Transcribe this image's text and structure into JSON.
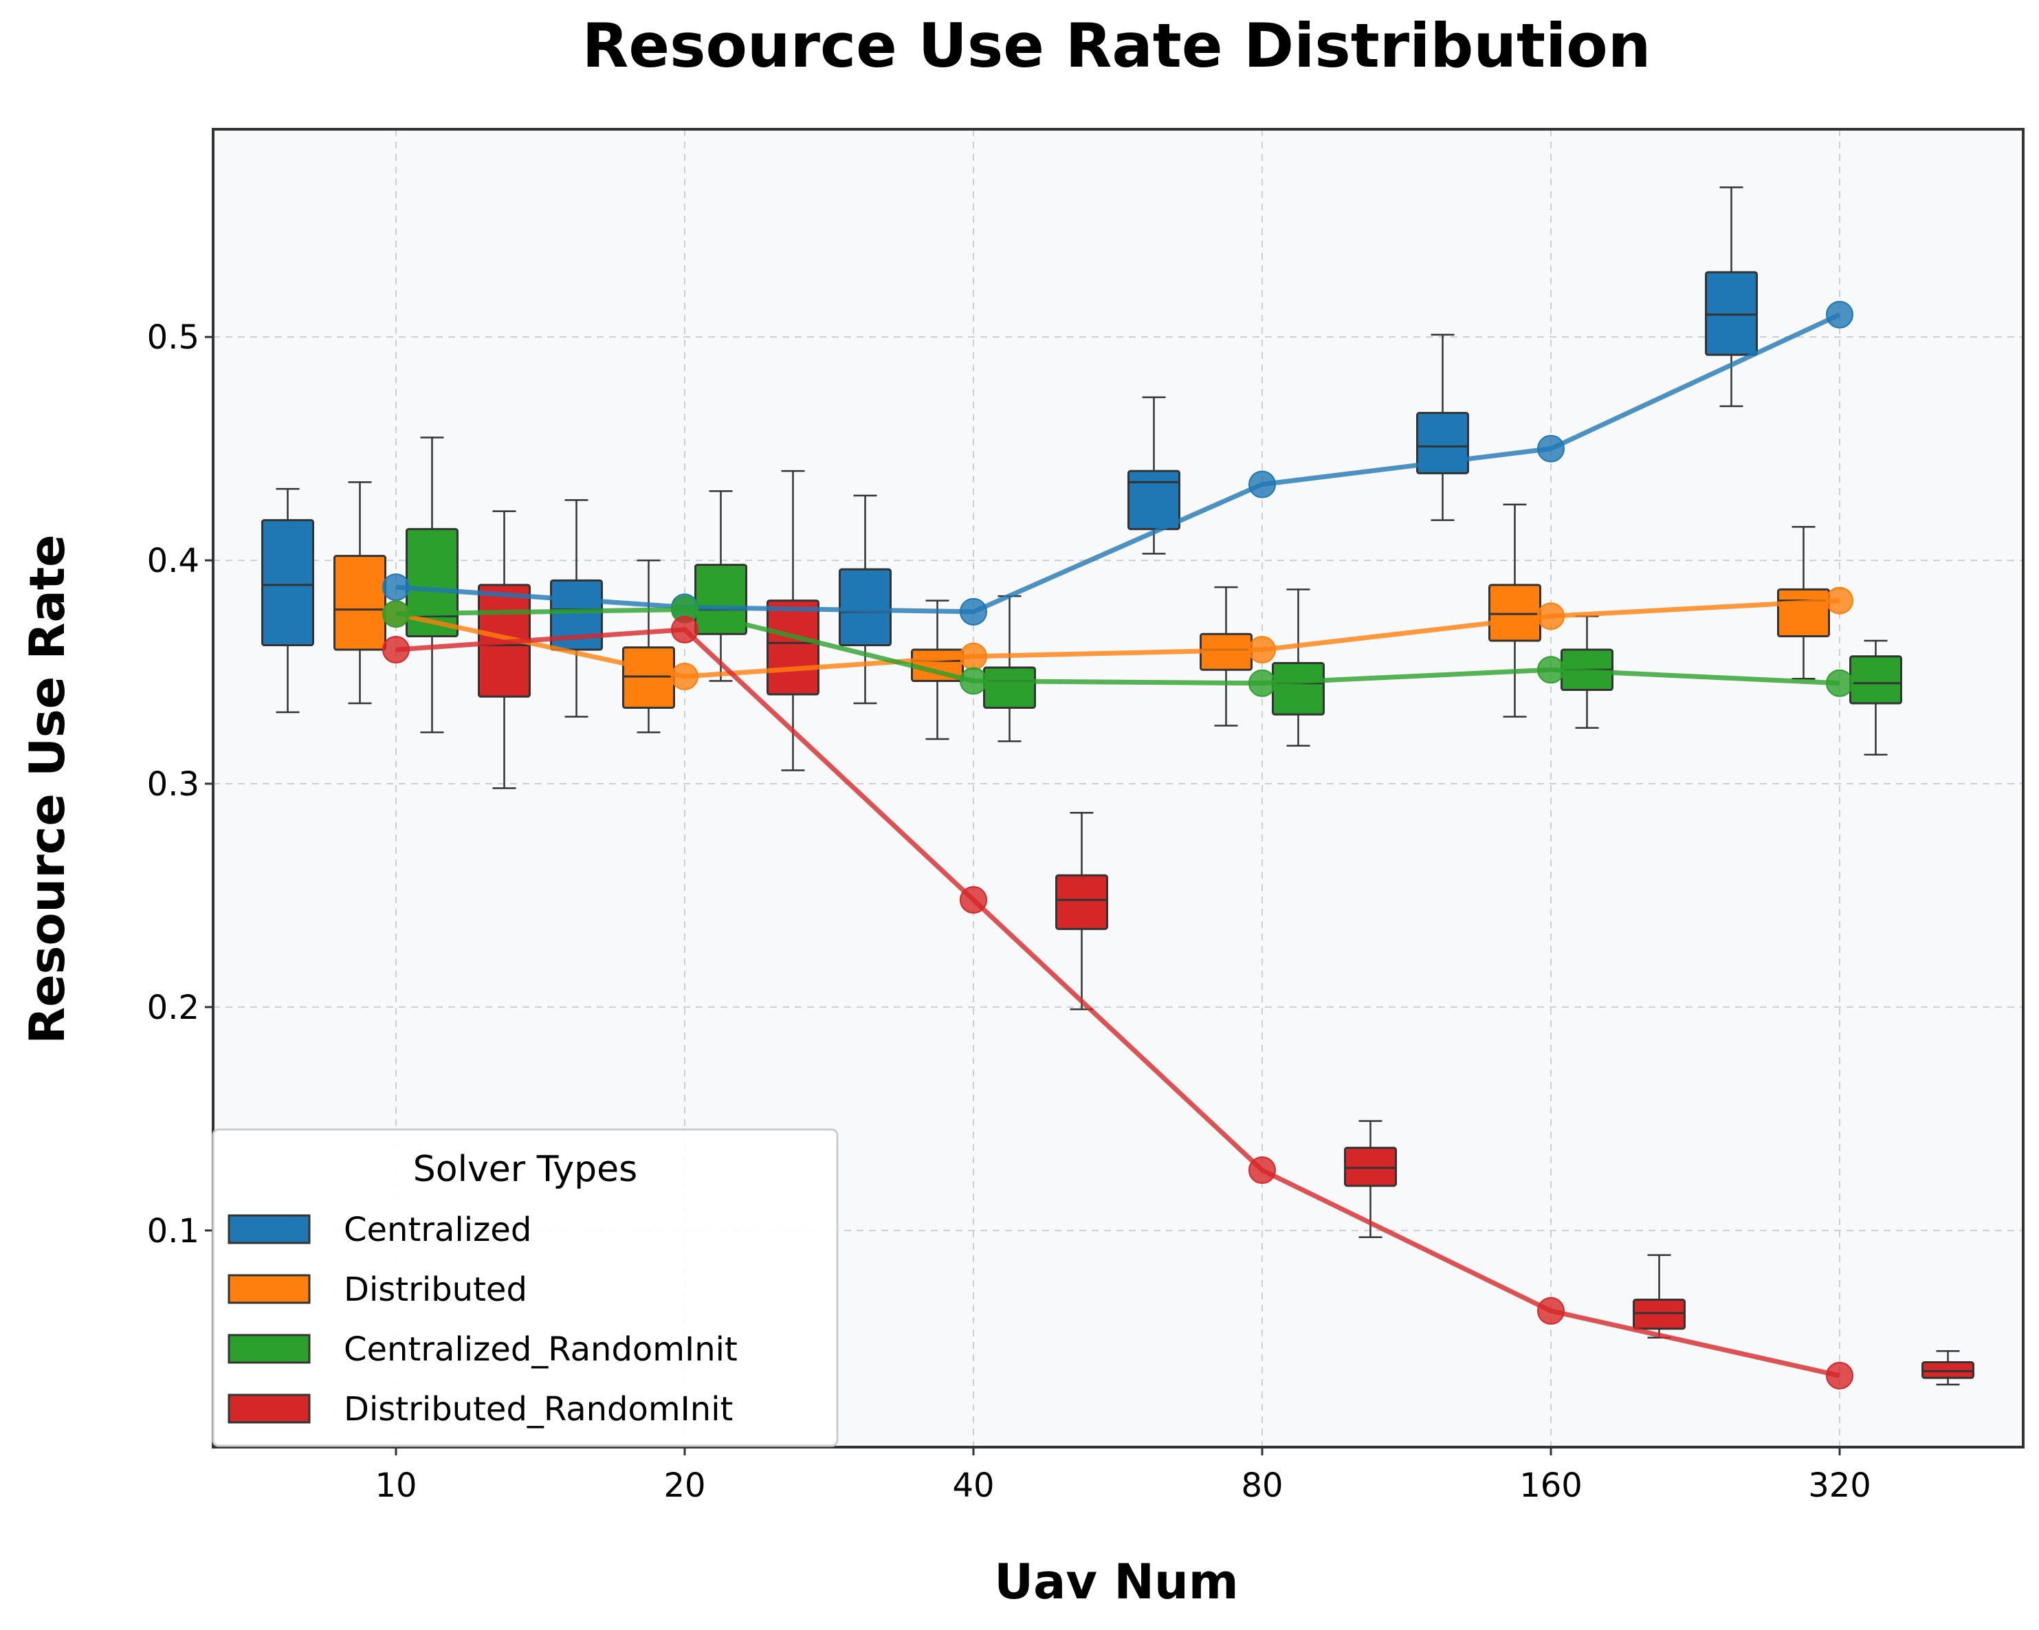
{
  "chart_data": {
    "type": "box",
    "title": "Resource Use Rate Distribution",
    "xlabel": "Uav Num",
    "ylabel": "Resource Use Rate",
    "categories": [
      "10",
      "20",
      "40",
      "80",
      "160",
      "320"
    ],
    "yticks": [
      "0.1",
      "0.2",
      "0.3",
      "0.4",
      "0.5"
    ],
    "ylim": [
      0.003,
      0.593
    ],
    "grid": true,
    "legend_title": "Solver Types",
    "legend_position": "lower-left",
    "series": [
      {
        "name": "Centralized",
        "color": "#1f77b4",
        "box_offset": -0.375,
        "boxes": [
          {
            "whislo": 0.332,
            "q1": 0.362,
            "med": 0.389,
            "q3": 0.418,
            "whishi": 0.432
          },
          {
            "whislo": 0.33,
            "q1": 0.36,
            "med": 0.378,
            "q3": 0.391,
            "whishi": 0.427
          },
          {
            "whislo": 0.336,
            "q1": 0.362,
            "med": 0.377,
            "q3": 0.396,
            "whishi": 0.429
          },
          {
            "whislo": 0.403,
            "q1": 0.414,
            "med": 0.435,
            "q3": 0.44,
            "whishi": 0.473
          },
          {
            "whislo": 0.418,
            "q1": 0.439,
            "med": 0.451,
            "q3": 0.466,
            "whishi": 0.501
          },
          {
            "whislo": 0.469,
            "q1": 0.492,
            "med": 0.51,
            "q3": 0.529,
            "whishi": 0.567
          }
        ],
        "means": [
          0.388,
          0.379,
          0.377,
          0.434,
          0.45,
          0.51
        ]
      },
      {
        "name": "Distributed",
        "color": "#ff7f0e",
        "box_offset": -0.125,
        "boxes": [
          {
            "whislo": 0.336,
            "q1": 0.36,
            "med": 0.378,
            "q3": 0.402,
            "whishi": 0.435
          },
          {
            "whislo": 0.323,
            "q1": 0.334,
            "med": 0.348,
            "q3": 0.361,
            "whishi": 0.4
          },
          {
            "whislo": 0.32,
            "q1": 0.346,
            "med": 0.355,
            "q3": 0.36,
            "whishi": 0.382
          },
          {
            "whislo": 0.326,
            "q1": 0.351,
            "med": 0.36,
            "q3": 0.367,
            "whishi": 0.388
          },
          {
            "whislo": 0.33,
            "q1": 0.364,
            "med": 0.376,
            "q3": 0.389,
            "whishi": 0.425
          },
          {
            "whislo": 0.347,
            "q1": 0.366,
            "med": 0.382,
            "q3": 0.387,
            "whishi": 0.415
          }
        ],
        "means": [
          0.376,
          0.348,
          0.357,
          0.36,
          0.375,
          0.382
        ]
      },
      {
        "name": "Centralized_RandomInit",
        "color": "#2ca02c",
        "box_offset": 0.125,
        "boxes": [
          {
            "whislo": 0.323,
            "q1": 0.366,
            "med": 0.375,
            "q3": 0.414,
            "whishi": 0.455
          },
          {
            "whislo": 0.346,
            "q1": 0.367,
            "med": 0.378,
            "q3": 0.398,
            "whishi": 0.431
          },
          {
            "whislo": 0.319,
            "q1": 0.334,
            "med": 0.346,
            "q3": 0.352,
            "whishi": 0.384
          },
          {
            "whislo": 0.317,
            "q1": 0.331,
            "med": 0.345,
            "q3": 0.354,
            "whishi": 0.387
          },
          {
            "whislo": 0.325,
            "q1": 0.342,
            "med": 0.351,
            "q3": 0.36,
            "whishi": 0.375
          },
          {
            "whislo": 0.313,
            "q1": 0.336,
            "med": 0.345,
            "q3": 0.357,
            "whishi": 0.364
          }
        ],
        "means": [
          0.376,
          0.378,
          0.346,
          0.345,
          0.351,
          0.345
        ]
      },
      {
        "name": "Distributed_RandomInit",
        "color": "#d62728",
        "box_offset": 0.375,
        "boxes": [
          {
            "whislo": 0.298,
            "q1": 0.339,
            "med": 0.362,
            "q3": 0.389,
            "whishi": 0.422
          },
          {
            "whislo": 0.306,
            "q1": 0.34,
            "med": 0.363,
            "q3": 0.382,
            "whishi": 0.44
          },
          {
            "whislo": 0.199,
            "q1": 0.235,
            "med": 0.248,
            "q3": 0.259,
            "whishi": 0.287
          },
          {
            "whislo": 0.097,
            "q1": 0.12,
            "med": 0.128,
            "q3": 0.137,
            "whishi": 0.149
          },
          {
            "whislo": 0.052,
            "q1": 0.056,
            "med": 0.063,
            "q3": 0.069,
            "whishi": 0.089
          },
          {
            "whislo": 0.031,
            "q1": 0.034,
            "med": 0.037,
            "q3": 0.041,
            "whishi": 0.046
          }
        ],
        "means": [
          0.36,
          0.369,
          0.248,
          0.127,
          0.064,
          0.035
        ]
      }
    ]
  }
}
